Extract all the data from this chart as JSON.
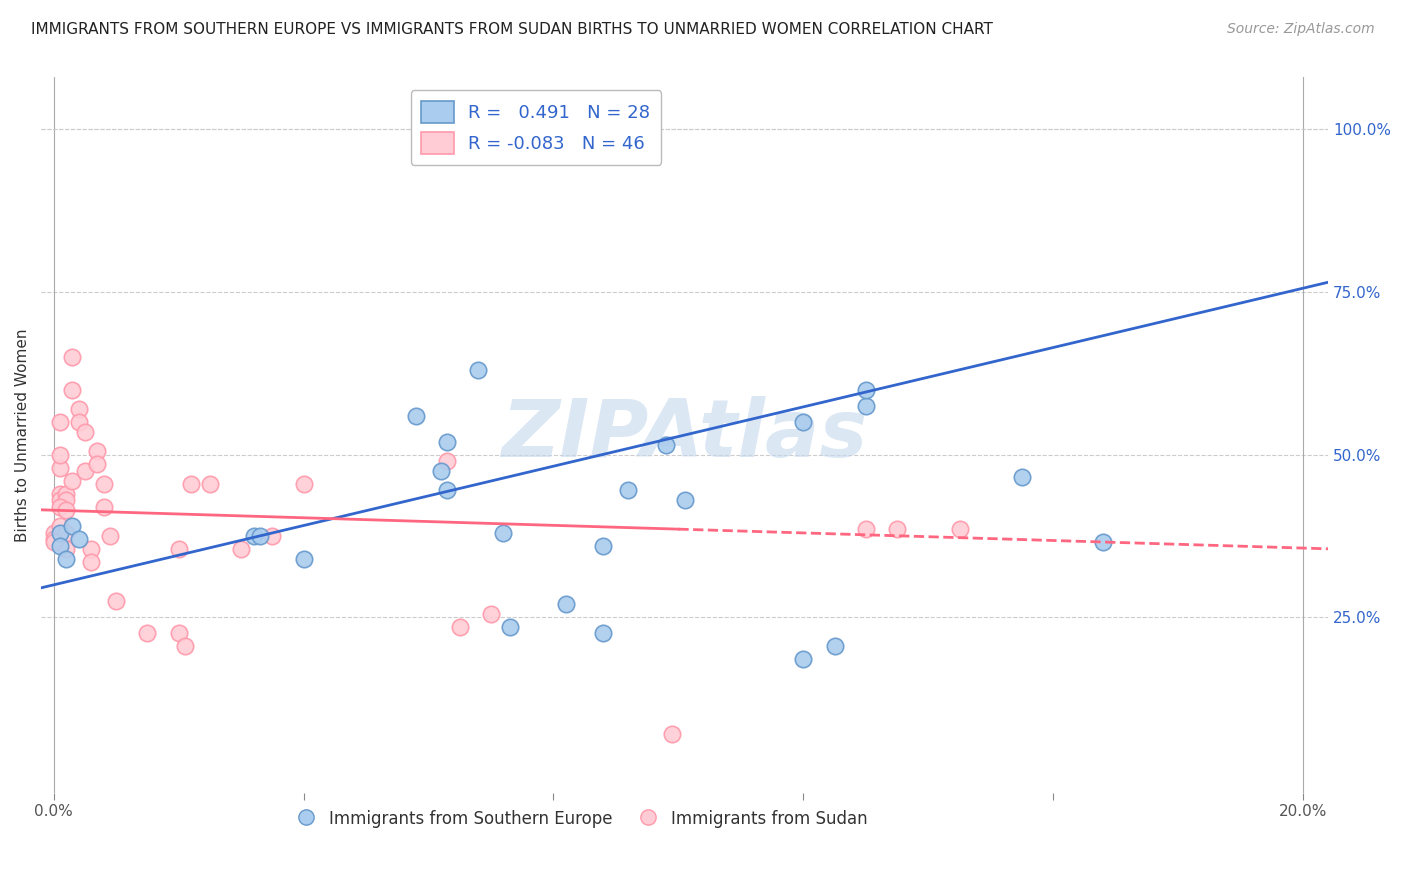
{
  "title": "IMMIGRANTS FROM SOUTHERN EUROPE VS IMMIGRANTS FROM SUDAN BIRTHS TO UNMARRIED WOMEN CORRELATION CHART",
  "source": "Source: ZipAtlas.com",
  "ylabel": "Births to Unmarried Women",
  "xlabel": "",
  "xlim": [
    -0.002,
    0.204
  ],
  "ylim": [
    -0.02,
    1.08
  ],
  "x_ticks": [
    0.0,
    0.04,
    0.08,
    0.12,
    0.16,
    0.2
  ],
  "x_tick_labels": [
    "0.0%",
    "",
    "",
    "",
    "",
    "20.0%"
  ],
  "y_ticks": [
    0.25,
    0.5,
    0.75,
    1.0
  ],
  "y_tick_labels": [
    "25.0%",
    "50.0%",
    "75.0%",
    "100.0%"
  ],
  "blue_color": "#6699CC",
  "blue_fill": "#AACCEE",
  "pink_color": "#FF99AA",
  "pink_fill": "#FFCCD5",
  "line_blue": "#3366CC",
  "line_pink": "#FF6680",
  "r_blue": 0.491,
  "n_blue": 28,
  "r_pink": -0.083,
  "n_pink": 46,
  "blue_scatter_x": [
    0.001,
    0.001,
    0.002,
    0.003,
    0.004,
    0.032,
    0.033,
    0.04,
    0.058,
    0.062,
    0.063,
    0.063,
    0.068,
    0.072,
    0.073,
    0.082,
    0.088,
    0.092,
    0.098,
    0.101,
    0.12,
    0.125,
    0.13,
    0.155,
    0.168,
    0.088,
    0.12,
    0.13
  ],
  "blue_scatter_y": [
    0.38,
    0.36,
    0.34,
    0.39,
    0.37,
    0.375,
    0.375,
    0.34,
    0.56,
    0.475,
    0.52,
    0.445,
    0.63,
    0.38,
    0.235,
    0.27,
    0.225,
    0.445,
    0.515,
    0.43,
    0.185,
    0.205,
    0.575,
    0.465,
    0.365,
    0.36,
    0.55,
    0.6
  ],
  "pink_scatter_x": [
    0.0,
    0.0,
    0.001,
    0.001,
    0.001,
    0.001,
    0.001,
    0.002,
    0.002,
    0.002,
    0.002,
    0.003,
    0.003,
    0.003,
    0.004,
    0.004,
    0.005,
    0.005,
    0.006,
    0.006,
    0.007,
    0.007,
    0.008,
    0.008,
    0.009,
    0.01,
    0.015,
    0.02,
    0.02,
    0.021,
    0.022,
    0.025,
    0.03,
    0.035,
    0.04,
    0.063,
    0.065,
    0.07,
    0.13,
    0.135,
    0.145,
    0.0,
    0.001,
    0.002,
    0.001,
    0.099
  ],
  "pink_scatter_y": [
    0.38,
    0.37,
    0.55,
    0.48,
    0.44,
    0.43,
    0.39,
    0.44,
    0.43,
    0.38,
    0.355,
    0.65,
    0.6,
    0.46,
    0.57,
    0.55,
    0.535,
    0.475,
    0.355,
    0.335,
    0.505,
    0.485,
    0.455,
    0.42,
    0.375,
    0.275,
    0.225,
    0.355,
    0.225,
    0.205,
    0.455,
    0.455,
    0.355,
    0.375,
    0.455,
    0.49,
    0.235,
    0.255,
    0.385,
    0.385,
    0.385,
    0.365,
    0.42,
    0.415,
    0.5,
    0.07
  ],
  "blue_line_x": [
    -0.002,
    0.204
  ],
  "blue_line_y": [
    0.295,
    0.765
  ],
  "pink_line_x": [
    -0.002,
    0.204
  ],
  "pink_line_y": [
    0.415,
    0.355
  ],
  "pink_line_solid_end": 0.1,
  "watermark": "ZIPAtlas",
  "background_color": "#FFFFFF",
  "grid_color": "#CCCCCC"
}
